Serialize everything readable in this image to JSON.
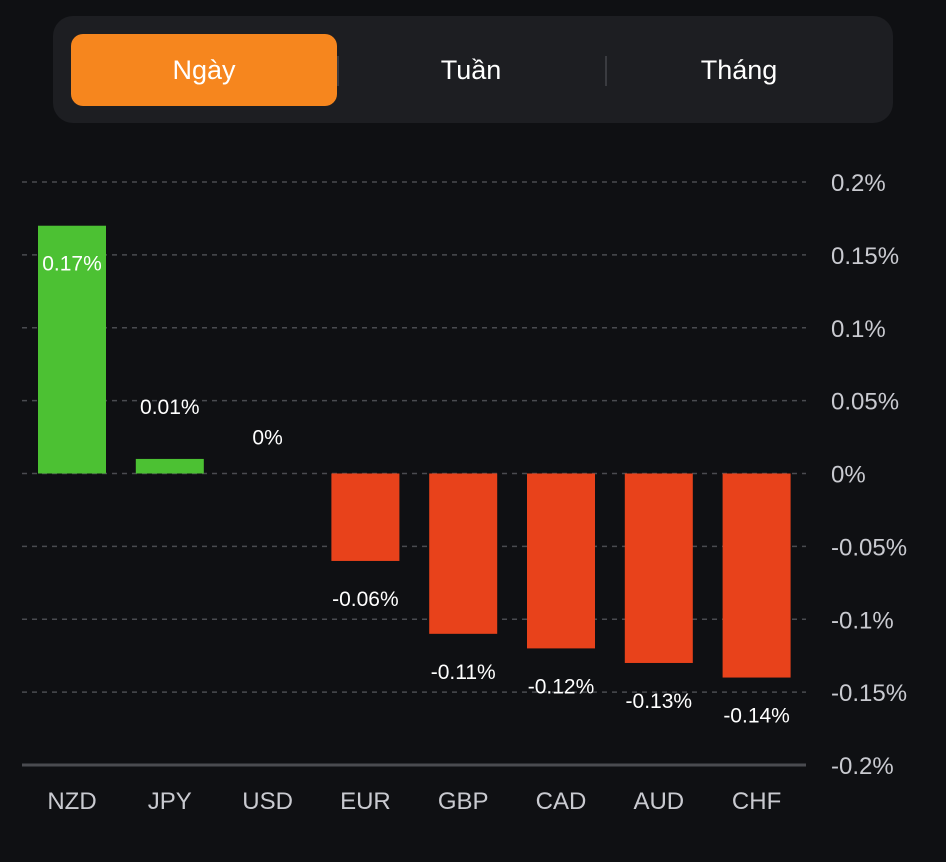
{
  "tabs": [
    {
      "label": "Ngày",
      "active": true
    },
    {
      "label": "Tuần",
      "active": false
    },
    {
      "label": "Tháng",
      "active": false
    }
  ],
  "colors": {
    "active_tab": "#f6861e",
    "positive": "#4cc133",
    "negative": "#e8421b",
    "background": "#0f1013"
  },
  "chart_data": {
    "type": "bar",
    "title": "",
    "xlabel": "",
    "ylabel": "",
    "categories": [
      "NZD",
      "JPY",
      "USD",
      "EUR",
      "GBP",
      "CAD",
      "AUD",
      "CHF"
    ],
    "values": [
      0.17,
      0.01,
      0,
      -0.06,
      -0.11,
      -0.12,
      -0.13,
      -0.14
    ],
    "value_labels": [
      "0.17%",
      "0.01%",
      "0%",
      "-0.06%",
      "-0.11%",
      "-0.12%",
      "-0.13%",
      "-0.14%"
    ],
    "ylim": [
      -0.2,
      0.2
    ],
    "yticks": [
      0.2,
      0.15,
      0.1,
      0.05,
      0,
      -0.05,
      -0.1,
      -0.15,
      -0.2
    ],
    "ytick_labels": [
      "0.2%",
      "0.15%",
      "0.1%",
      "0.05%",
      "0%",
      "-0.05%",
      "-0.1%",
      "-0.15%",
      "-0.2%"
    ],
    "y_axis_position": "right",
    "grid": true
  }
}
